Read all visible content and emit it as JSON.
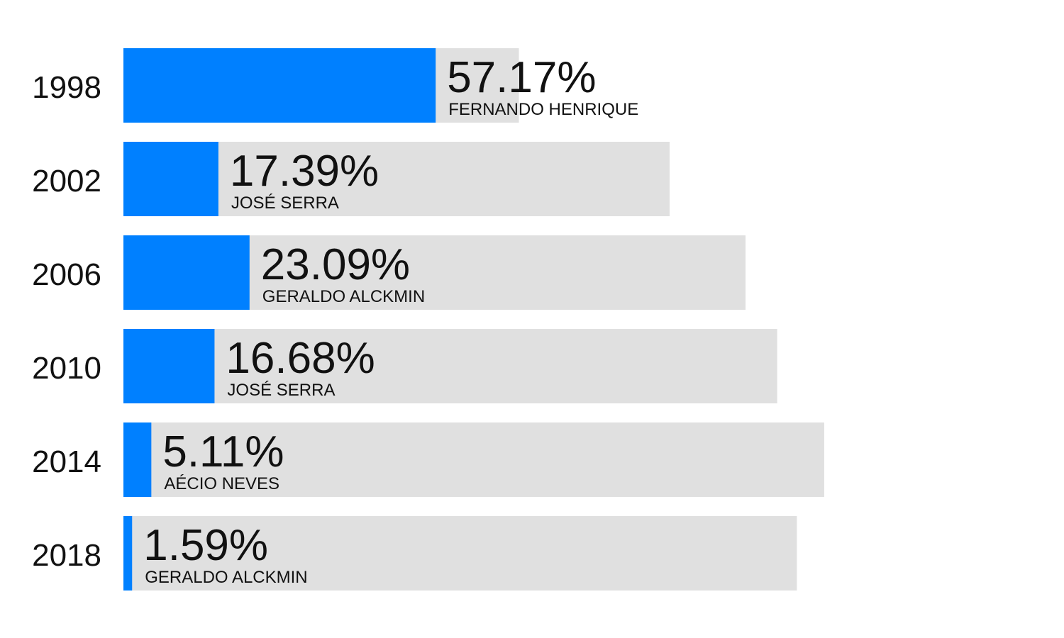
{
  "chart_data": {
    "type": "bar",
    "orientation": "horizontal",
    "title": "",
    "xlabel": "",
    "ylabel": "",
    "grid": false,
    "categories": [
      "1998",
      "2002",
      "2006",
      "2010",
      "2014",
      "2018"
    ],
    "values": [
      57.17,
      17.39,
      23.09,
      16.68,
      5.11,
      1.59
    ],
    "value_labels": [
      "57.17%",
      "17.39%",
      "23.09%",
      "16.68%",
      "5.11%",
      "1.59%"
    ],
    "candidates": [
      "FERNANDO HENRIQUE",
      "JOSÉ SERRA",
      "GERALDO ALCKMIN",
      "JOSÉ SERRA",
      "AÉCIO NEVES",
      "GERALDO ALCKMIN"
    ],
    "background_totals": [
      72.4,
      100,
      113.9,
      119.7,
      128.3,
      123.3
    ],
    "colors": {
      "value_bar": "#0080ff",
      "background_bar": "#e0e0e0",
      "text": "#111111"
    }
  }
}
